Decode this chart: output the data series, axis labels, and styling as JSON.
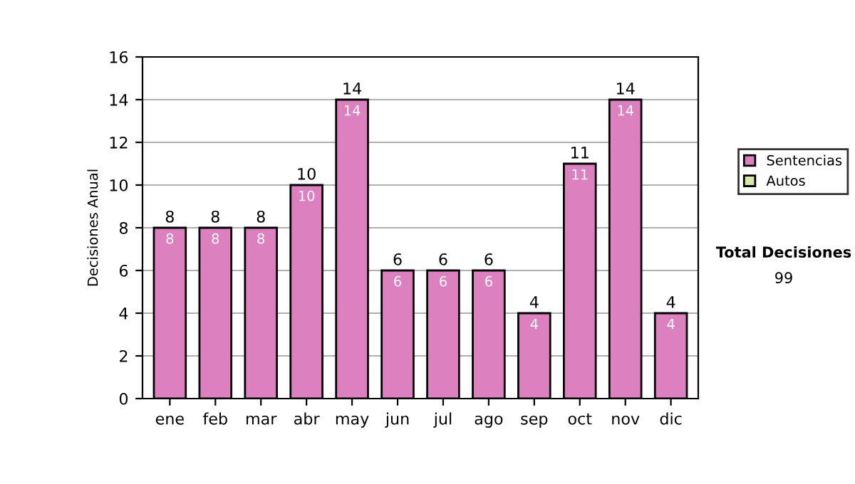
{
  "chart_data": {
    "type": "bar",
    "stacked": true,
    "ylabel": "Decisiones Anual",
    "categories": [
      "ene",
      "feb",
      "mar",
      "abr",
      "may",
      "jun",
      "jul",
      "ago",
      "sep",
      "oct",
      "nov",
      "dic"
    ],
    "series": [
      {
        "name": "Sentencias",
        "color": "#dd80c0",
        "values": [
          8,
          8,
          8,
          10,
          14,
          6,
          6,
          6,
          4,
          11,
          14,
          4
        ]
      },
      {
        "name": "Autos",
        "color": "#d8e8a8",
        "values": [
          null,
          null,
          null,
          null,
          null,
          null,
          null,
          null,
          null,
          null,
          null,
          null
        ]
      }
    ],
    "totals": [
      "8",
      "8",
      "8",
      "10",
      "14",
      "6",
      "6",
      "6",
      "4",
      "11",
      "14",
      "4"
    ],
    "data_labels": true,
    "ylim": [
      0,
      16
    ],
    "yticks": [
      0,
      2,
      4,
      6,
      8,
      10,
      12,
      14,
      16
    ],
    "grid": "y",
    "legend": "right",
    "annotations": [
      "Total Decisiones",
      "99"
    ]
  }
}
